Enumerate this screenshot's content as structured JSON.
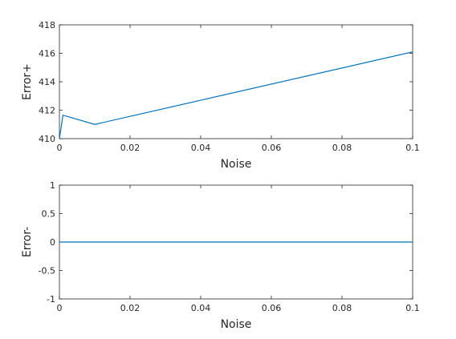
{
  "chart_data": [
    {
      "type": "line",
      "title": "",
      "xlabel": "Noise",
      "ylabel": "Error+",
      "xlim": [
        0,
        0.1
      ],
      "ylim": [
        410,
        418
      ],
      "xticks": [
        "0",
        "0.02",
        "0.04",
        "0.06",
        "0.08",
        "0.1"
      ],
      "yticks": [
        "410",
        "412",
        "414",
        "416",
        "418"
      ],
      "grid": false,
      "series": [
        {
          "color": "#0072BD",
          "x": [
            0,
            0.001,
            0.01,
            0.1
          ],
          "y": [
            410.0,
            411.65,
            411.0,
            416.1
          ]
        }
      ]
    },
    {
      "type": "line",
      "title": "",
      "xlabel": "Noise",
      "ylabel": "Error-",
      "xlim": [
        0,
        0.1
      ],
      "ylim": [
        -1,
        1
      ],
      "xticks": [
        "0",
        "0.02",
        "0.04",
        "0.06",
        "0.08",
        "0.1"
      ],
      "yticks": [
        "-1",
        "-0.5",
        "0",
        "0.5",
        "1"
      ],
      "grid": false,
      "series": [
        {
          "color": "#0072BD",
          "x": [
            0,
            0.001,
            0.01,
            0.1
          ],
          "y": [
            0,
            0,
            0,
            0
          ]
        }
      ]
    }
  ]
}
